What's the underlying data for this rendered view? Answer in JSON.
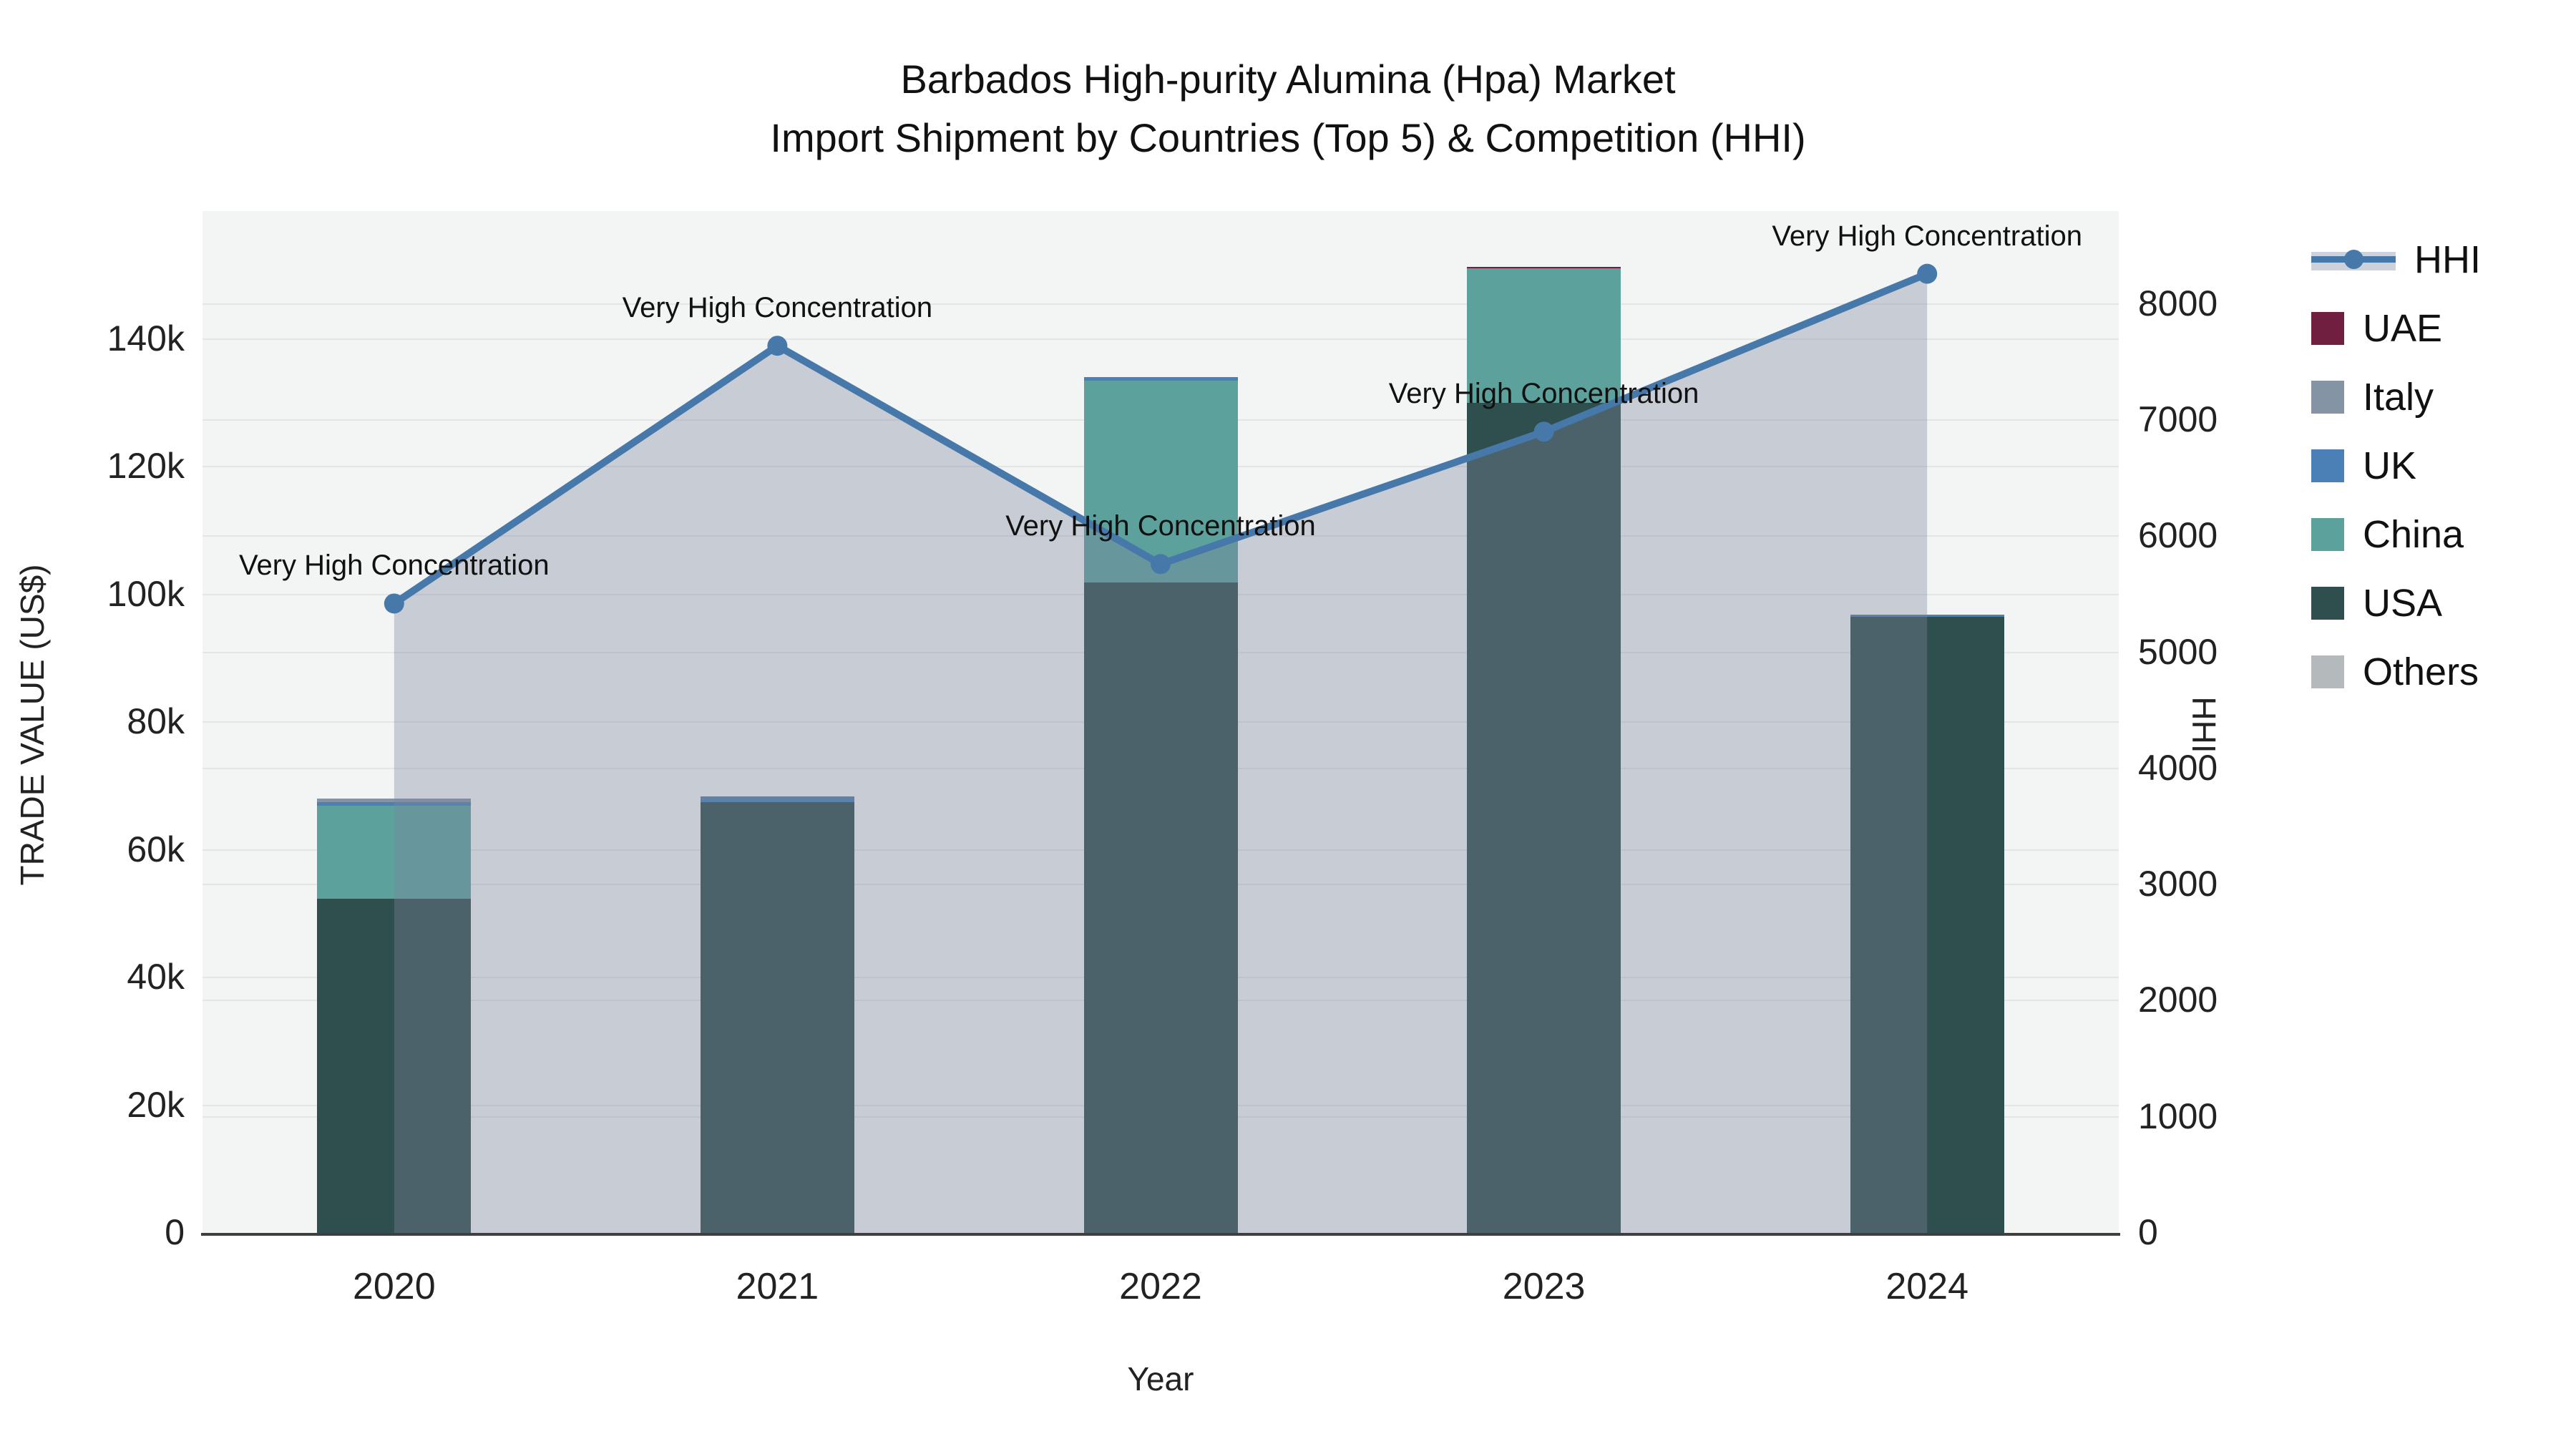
{
  "title": {
    "line1": "Barbados High-purity Alumina (Hpa) Market",
    "line2": "Import Shipment by Countries (Top 5) & Competition (HHI)"
  },
  "axes": {
    "y_left_title": "TRADE VALUE (US$)",
    "y_right_title": "HHI",
    "x_title": "Year",
    "left_ticks": [
      "0",
      "20k",
      "40k",
      "60k",
      "80k",
      "100k",
      "120k",
      "140k"
    ],
    "right_ticks": [
      "0",
      "1000",
      "2000",
      "3000",
      "4000",
      "5000",
      "6000",
      "7000",
      "8000"
    ],
    "x_ticks": [
      "2020",
      "2021",
      "2022",
      "2023",
      "2024"
    ]
  },
  "legend": [
    {
      "label": "HHI",
      "type": "line",
      "color": "#4678aa"
    },
    {
      "label": "UAE",
      "type": "swatch",
      "color": "#701f40"
    },
    {
      "label": "Italy",
      "type": "swatch",
      "color": "#8494a4"
    },
    {
      "label": "UK",
      "type": "swatch",
      "color": "#4a80b5"
    },
    {
      "label": "China",
      "type": "swatch",
      "color": "#5ca19c"
    },
    {
      "label": "USA",
      "type": "swatch",
      "color": "#2f4f4e"
    },
    {
      "label": "Others",
      "type": "swatch",
      "color": "#b4b9bc"
    }
  ],
  "chart_data": {
    "type": "bar+line",
    "title": "Barbados High-purity Alumina (Hpa) Market Import Shipment by Countries (Top 5) & Competition (HHI)",
    "categories": [
      "2020",
      "2021",
      "2022",
      "2023",
      "2024"
    ],
    "bar_series": [
      {
        "name": "USA",
        "color": "#2f4f4e",
        "values": [
          52300,
          67500,
          101800,
          130000,
          96500
        ]
      },
      {
        "name": "China",
        "color": "#5ca19c",
        "values": [
          14600,
          0,
          31700,
          21000,
          0
        ]
      },
      {
        "name": "UK",
        "color": "#4a80b5",
        "values": [
          500,
          800,
          500,
          0,
          350
        ]
      },
      {
        "name": "Italy",
        "color": "#8494a4",
        "values": [
          600,
          0,
          0,
          0,
          0
        ]
      },
      {
        "name": "UAE",
        "color": "#701f40",
        "values": [
          0,
          0,
          0,
          250,
          0
        ]
      },
      {
        "name": "Others",
        "color": "#b4b9bc",
        "values": [
          0,
          0,
          0,
          0,
          0
        ]
      }
    ],
    "line_series": {
      "name": "HHI",
      "color": "#4678aa",
      "values": [
        5420,
        7640,
        5760,
        6900,
        8260
      ],
      "area_fill": "#7c859e",
      "area_opacity": 0.36
    },
    "annotation_text": "Very High Concentration",
    "xlabel": "Year",
    "ylabel_left": "TRADE VALUE (US$)",
    "ylabel_right": "HHI",
    "y_left_max": 160000,
    "y_left_tick_step": 20000,
    "y_right_max": 8800,
    "y_right_tick_step": 1000,
    "grid": true,
    "legend_position": "right"
  }
}
